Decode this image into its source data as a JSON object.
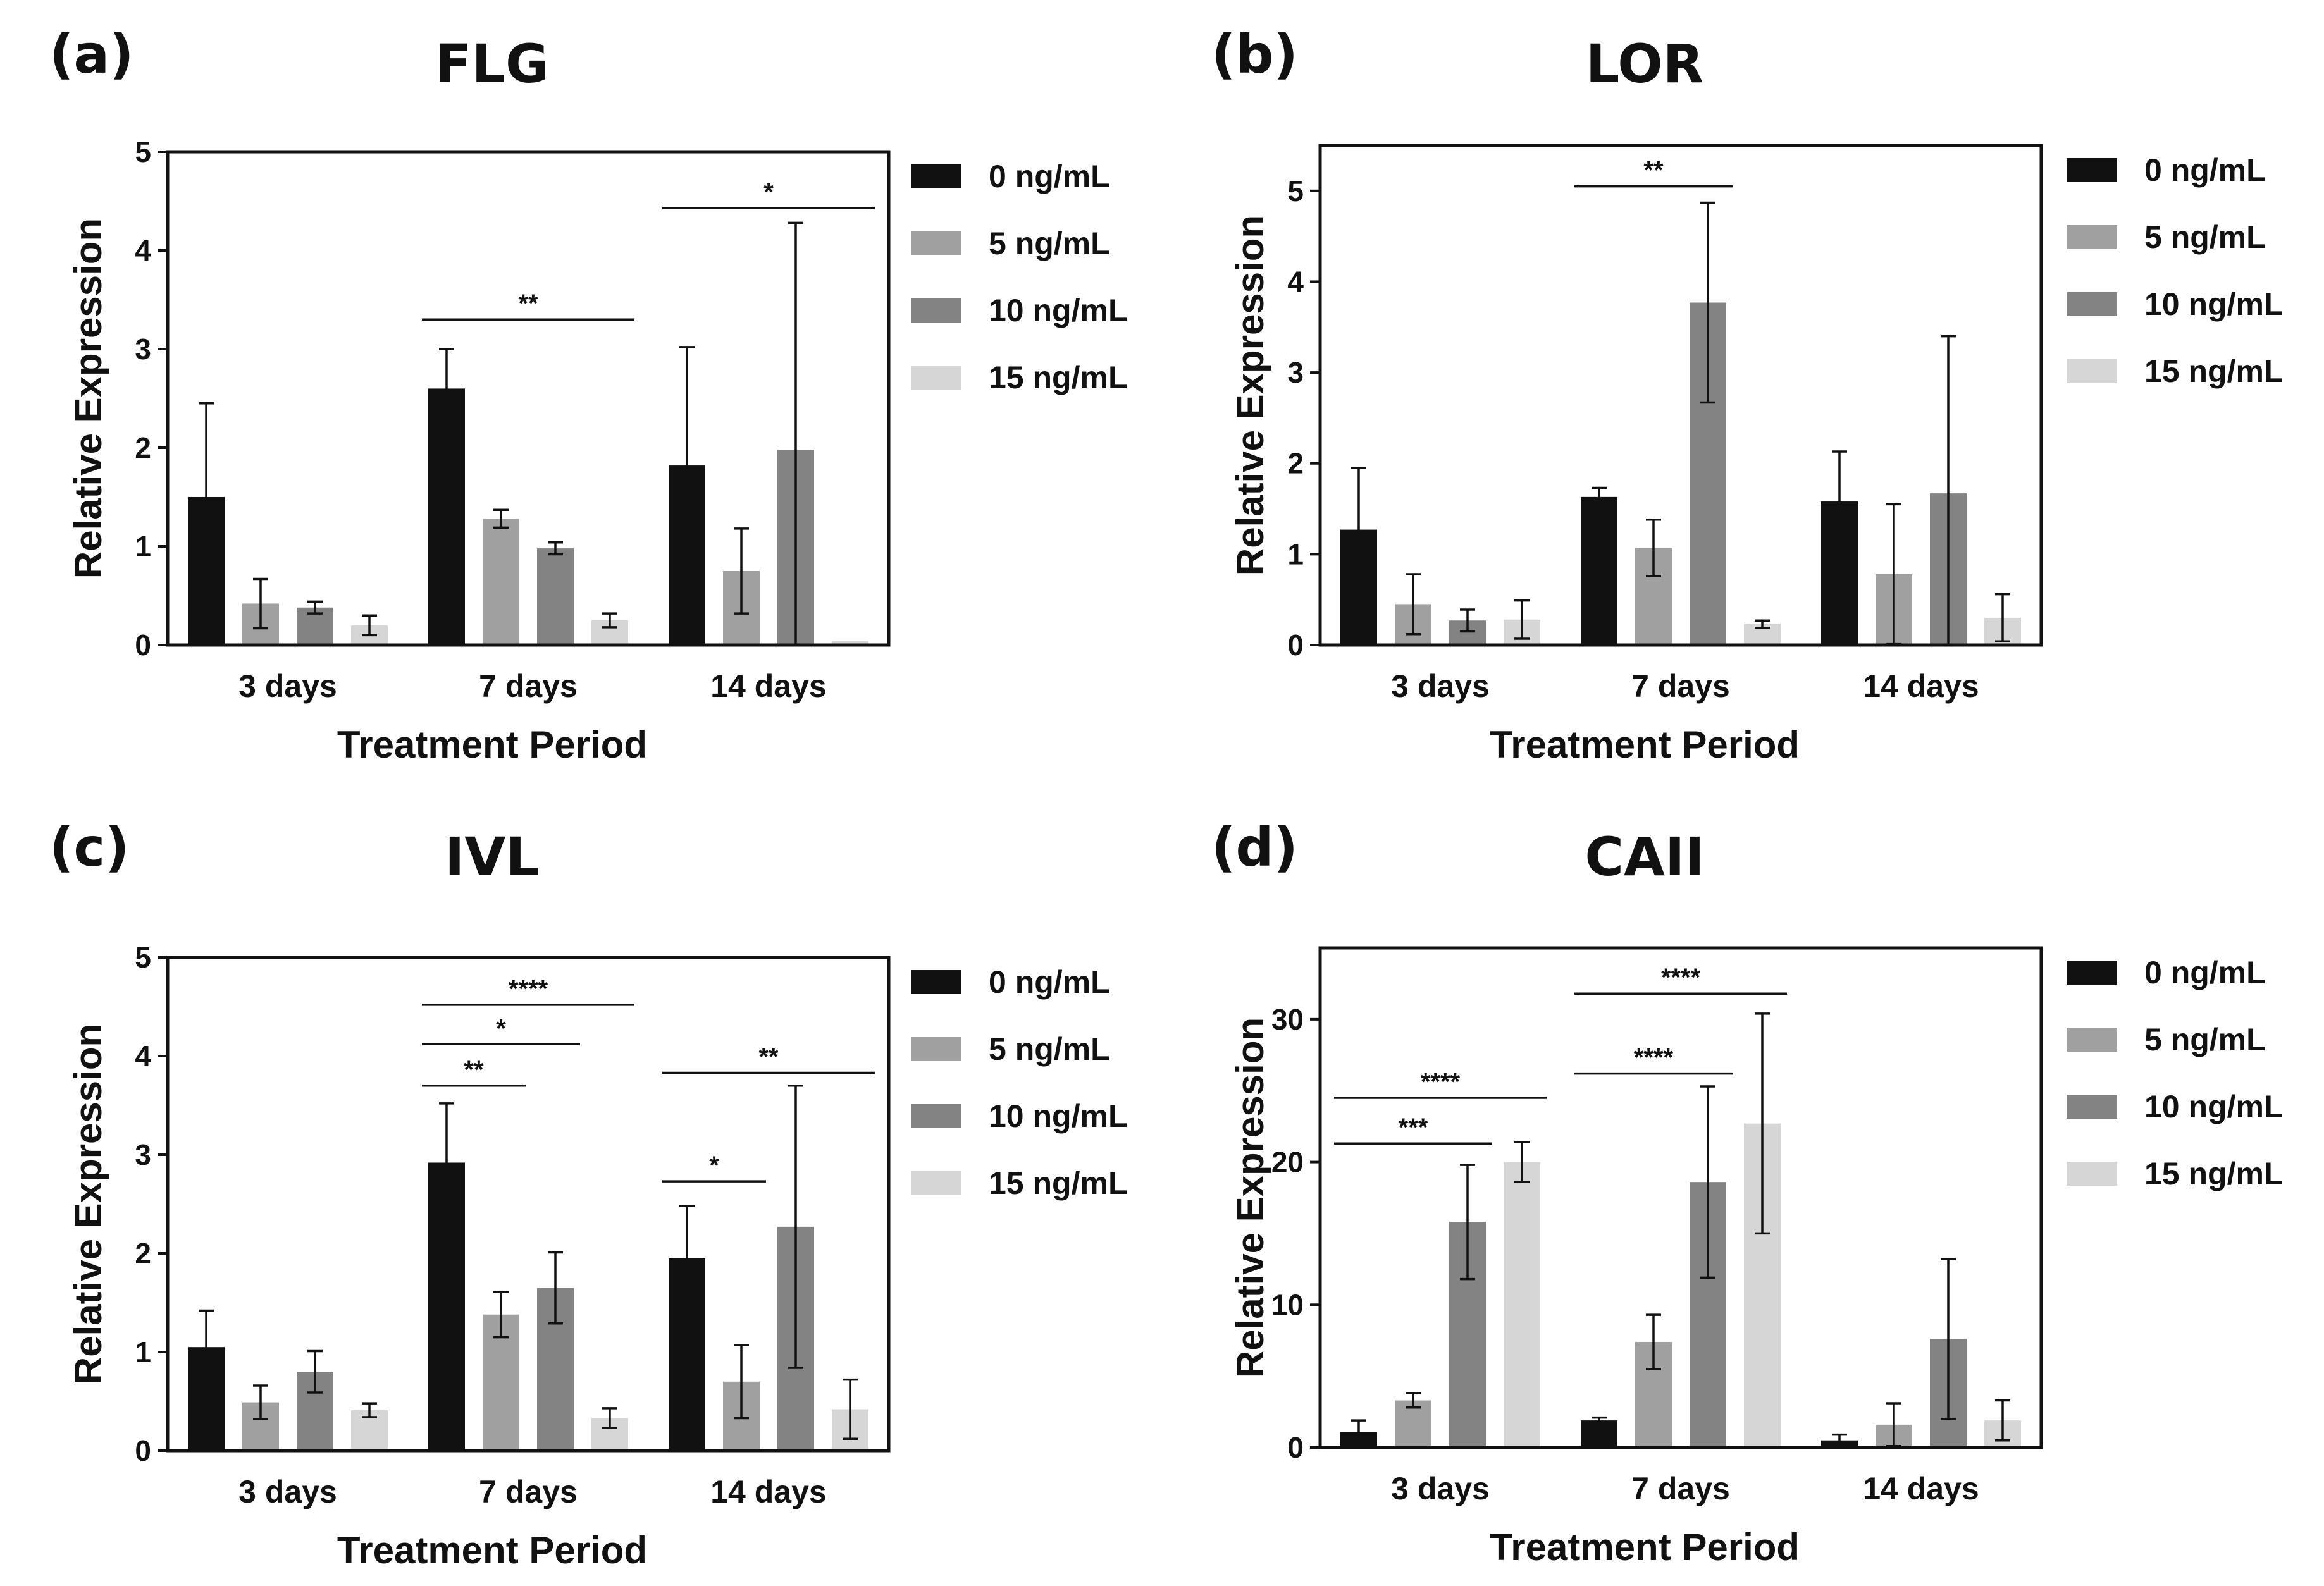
{
  "chart_data": [
    {
      "type": "bar",
      "panel_label": "(a)",
      "title": "FLG",
      "xlabel": "Treatment Period",
      "ylabel": "Relative Expression",
      "ylim": [
        0,
        5
      ],
      "yticks": [
        0,
        1,
        2,
        3,
        4,
        5
      ],
      "categories": [
        "3 days",
        "7 days",
        "14 days"
      ],
      "series": [
        {
          "name": "0 ng/mL",
          "color": "#111111",
          "values": [
            1.5,
            2.6,
            1.82
          ],
          "errors": [
            0.95,
            0.4,
            1.2
          ]
        },
        {
          "name": "5 ng/mL",
          "color": "#a0a0a0",
          "values": [
            0.42,
            1.28,
            0.75
          ],
          "errors": [
            0.25,
            0.09,
            0.43
          ]
        },
        {
          "name": "10 ng/mL",
          "color": "#838383",
          "values": [
            0.38,
            0.98,
            1.98
          ],
          "errors": [
            0.06,
            0.06,
            2.3
          ]
        },
        {
          "name": "15 ng/mL",
          "color": "#d6d6d6",
          "values": [
            0.2,
            0.25,
            0.04
          ],
          "errors": [
            0.1,
            0.07,
            0.0
          ]
        }
      ],
      "significance": [
        {
          "group": 1,
          "from": 0,
          "to": 3,
          "y": 3.3,
          "label": "**"
        },
        {
          "group": 2,
          "from": 0,
          "to": 3,
          "y": 4.43,
          "label": "*"
        }
      ]
    },
    {
      "type": "bar",
      "panel_label": "(b)",
      "title": "LOR",
      "xlabel": "Treatment Period",
      "ylabel": "Relative Expression",
      "ylim": [
        0,
        5.5
      ],
      "yticks": [
        0,
        1,
        2,
        3,
        4,
        5
      ],
      "categories": [
        "3 days",
        "7 days",
        "14 days"
      ],
      "series": [
        {
          "name": "0 ng/mL",
          "color": "#111111",
          "values": [
            1.27,
            1.63,
            1.58
          ],
          "errors": [
            0.68,
            0.1,
            0.55
          ]
        },
        {
          "name": "5 ng/mL",
          "color": "#a0a0a0",
          "values": [
            0.45,
            1.07,
            0.78
          ],
          "errors": [
            0.33,
            0.31,
            0.77
          ]
        },
        {
          "name": "10 ng/mL",
          "color": "#838383",
          "values": [
            0.27,
            3.77,
            1.67
          ],
          "errors": [
            0.12,
            1.1,
            1.73
          ]
        },
        {
          "name": "15 ng/mL",
          "color": "#d6d6d6",
          "values": [
            0.28,
            0.23,
            0.3
          ],
          "errors": [
            0.21,
            0.04,
            0.26
          ]
        }
      ],
      "significance": [
        {
          "group": 1,
          "from": 0,
          "to": 2,
          "y": 5.05,
          "label": "**"
        }
      ]
    },
    {
      "type": "bar",
      "panel_label": "(c)",
      "title": "IVL",
      "xlabel": "Treatment Period",
      "ylabel": "Relative Expression",
      "ylim": [
        0,
        5
      ],
      "yticks": [
        0,
        1,
        2,
        3,
        4,
        5
      ],
      "categories": [
        "3 days",
        "7 days",
        "14 days"
      ],
      "series": [
        {
          "name": "0 ng/mL",
          "color": "#111111",
          "values": [
            1.05,
            2.92,
            1.95
          ],
          "errors": [
            0.37,
            0.6,
            0.53
          ]
        },
        {
          "name": "5 ng/mL",
          "color": "#a0a0a0",
          "values": [
            0.49,
            1.38,
            0.7
          ],
          "errors": [
            0.17,
            0.23,
            0.37
          ]
        },
        {
          "name": "10 ng/mL",
          "color": "#838383",
          "values": [
            0.8,
            1.65,
            2.27
          ],
          "errors": [
            0.21,
            0.36,
            1.43
          ]
        },
        {
          "name": "15 ng/mL",
          "color": "#d6d6d6",
          "values": [
            0.41,
            0.33,
            0.42
          ],
          "errors": [
            0.07,
            0.1,
            0.3
          ]
        }
      ],
      "significance": [
        {
          "group": 1,
          "from": 0,
          "to": 1,
          "y": 3.7,
          "label": "**"
        },
        {
          "group": 1,
          "from": 0,
          "to": 2,
          "y": 4.12,
          "label": "*"
        },
        {
          "group": 1,
          "from": 0,
          "to": 3,
          "y": 4.52,
          "label": "****"
        },
        {
          "group": 2,
          "from": 0,
          "to": 1,
          "y": 2.73,
          "label": "*"
        },
        {
          "group": 2,
          "from": 0,
          "to": 3,
          "y": 3.83,
          "label": "**"
        }
      ]
    },
    {
      "type": "bar",
      "panel_label": "(d)",
      "title": "CAII",
      "xlabel": "Treatment Period",
      "ylabel": "Relative Expression",
      "ylim": [
        0,
        35
      ],
      "yticks": [
        0,
        10,
        20,
        30
      ],
      "categories": [
        "3 days",
        "7 days",
        "14 days"
      ],
      "series": [
        {
          "name": "0 ng/mL",
          "color": "#111111",
          "values": [
            1.1,
            1.9,
            0.5
          ],
          "errors": [
            0.8,
            0.2,
            0.4
          ]
        },
        {
          "name": "5 ng/mL",
          "color": "#a0a0a0",
          "values": [
            3.3,
            7.4,
            1.6
          ],
          "errors": [
            0.5,
            1.9,
            1.5
          ]
        },
        {
          "name": "10 ng/mL",
          "color": "#838383",
          "values": [
            15.8,
            18.6,
            7.6
          ],
          "errors": [
            4.0,
            6.7,
            5.6
          ]
        },
        {
          "name": "15 ng/mL",
          "color": "#d6d6d6",
          "values": [
            20.0,
            22.7,
            1.9
          ],
          "errors": [
            1.4,
            7.7,
            1.4
          ]
        }
      ],
      "significance": [
        {
          "group": 0,
          "from": 0,
          "to": 2,
          "y": 21.3,
          "label": "***"
        },
        {
          "group": 0,
          "from": 0,
          "to": 3,
          "y": 24.5,
          "label": "****"
        },
        {
          "group": 1,
          "from": 0,
          "to": 2,
          "y": 26.2,
          "label": "****"
        },
        {
          "group": 1,
          "from": 0,
          "to": 3,
          "y": 31.8,
          "label": "****"
        }
      ]
    }
  ]
}
